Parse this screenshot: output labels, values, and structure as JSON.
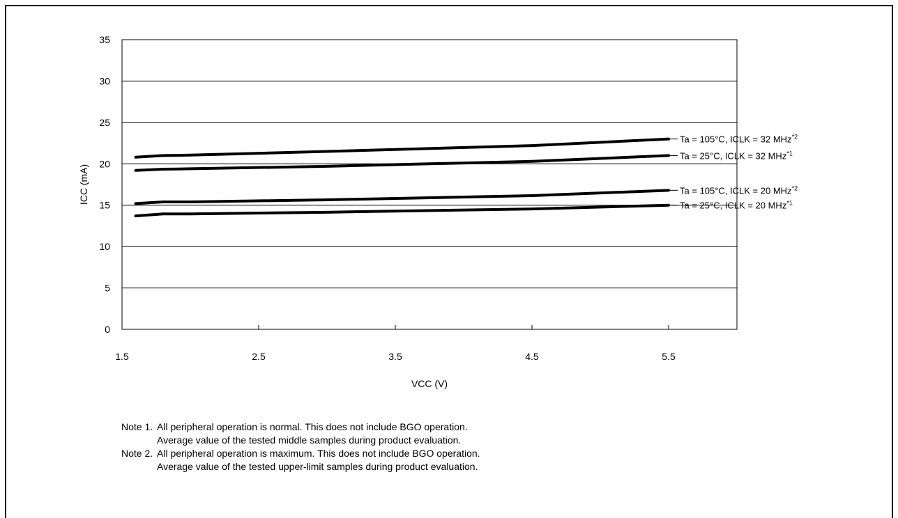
{
  "chart_data": {
    "type": "line",
    "xlabel": "VCC (V)",
    "ylabel": "ICC (mA)",
    "xlim": [
      1.5,
      6.0
    ],
    "ylim": [
      0,
      35
    ],
    "xticks": [
      1.5,
      2.5,
      3.5,
      4.5,
      5.5
    ],
    "xtick_labels": [
      "1.5",
      "2.5",
      "3.5",
      "4.5",
      "5.5"
    ],
    "yticks": [
      0,
      5,
      10,
      15,
      20,
      25,
      30,
      35
    ],
    "ytick_labels": [
      "0",
      "5",
      "10",
      "15",
      "20",
      "25",
      "30",
      "35"
    ],
    "grid": "horizontal",
    "line_color": "#000000",
    "series": [
      {
        "name": "Ta = 105°C, ICLK = 32 MHz",
        "sup": "*2",
        "x": [
          1.6,
          1.8,
          2.0,
          3.0,
          4.5,
          5.5
        ],
        "y": [
          20.8,
          21.0,
          21.05,
          21.5,
          22.2,
          23.0
        ]
      },
      {
        "name": "Ta = 25°C, ICLK = 32 MHz",
        "sup": "*1",
        "x": [
          1.6,
          1.8,
          2.0,
          3.0,
          4.5,
          5.5
        ],
        "y": [
          19.2,
          19.35,
          19.4,
          19.7,
          20.3,
          21.0
        ]
      },
      {
        "name": "Ta = 105°C, ICLK = 20 MHz",
        "sup": "*2",
        "x": [
          1.6,
          1.8,
          2.0,
          3.0,
          4.5,
          5.5
        ],
        "y": [
          15.2,
          15.4,
          15.4,
          15.65,
          16.15,
          16.8
        ]
      },
      {
        "name": "Ta = 25°C, ICLK = 20 MHz",
        "sup": "*1",
        "x": [
          1.6,
          1.8,
          2.0,
          3.0,
          4.5,
          5.5
        ],
        "y": [
          13.7,
          13.95,
          13.95,
          14.15,
          14.55,
          15.0
        ]
      }
    ]
  },
  "notes": [
    {
      "label": "Note 1.",
      "lines": [
        "All peripheral operation is normal. This does not include BGO operation.",
        "Average value of the tested middle samples during product evaluation."
      ]
    },
    {
      "label": "Note 2.",
      "lines": [
        "All peripheral operation is maximum. This does not include BGO operation.",
        "Average value of the tested upper-limit samples during product evaluation."
      ]
    }
  ]
}
